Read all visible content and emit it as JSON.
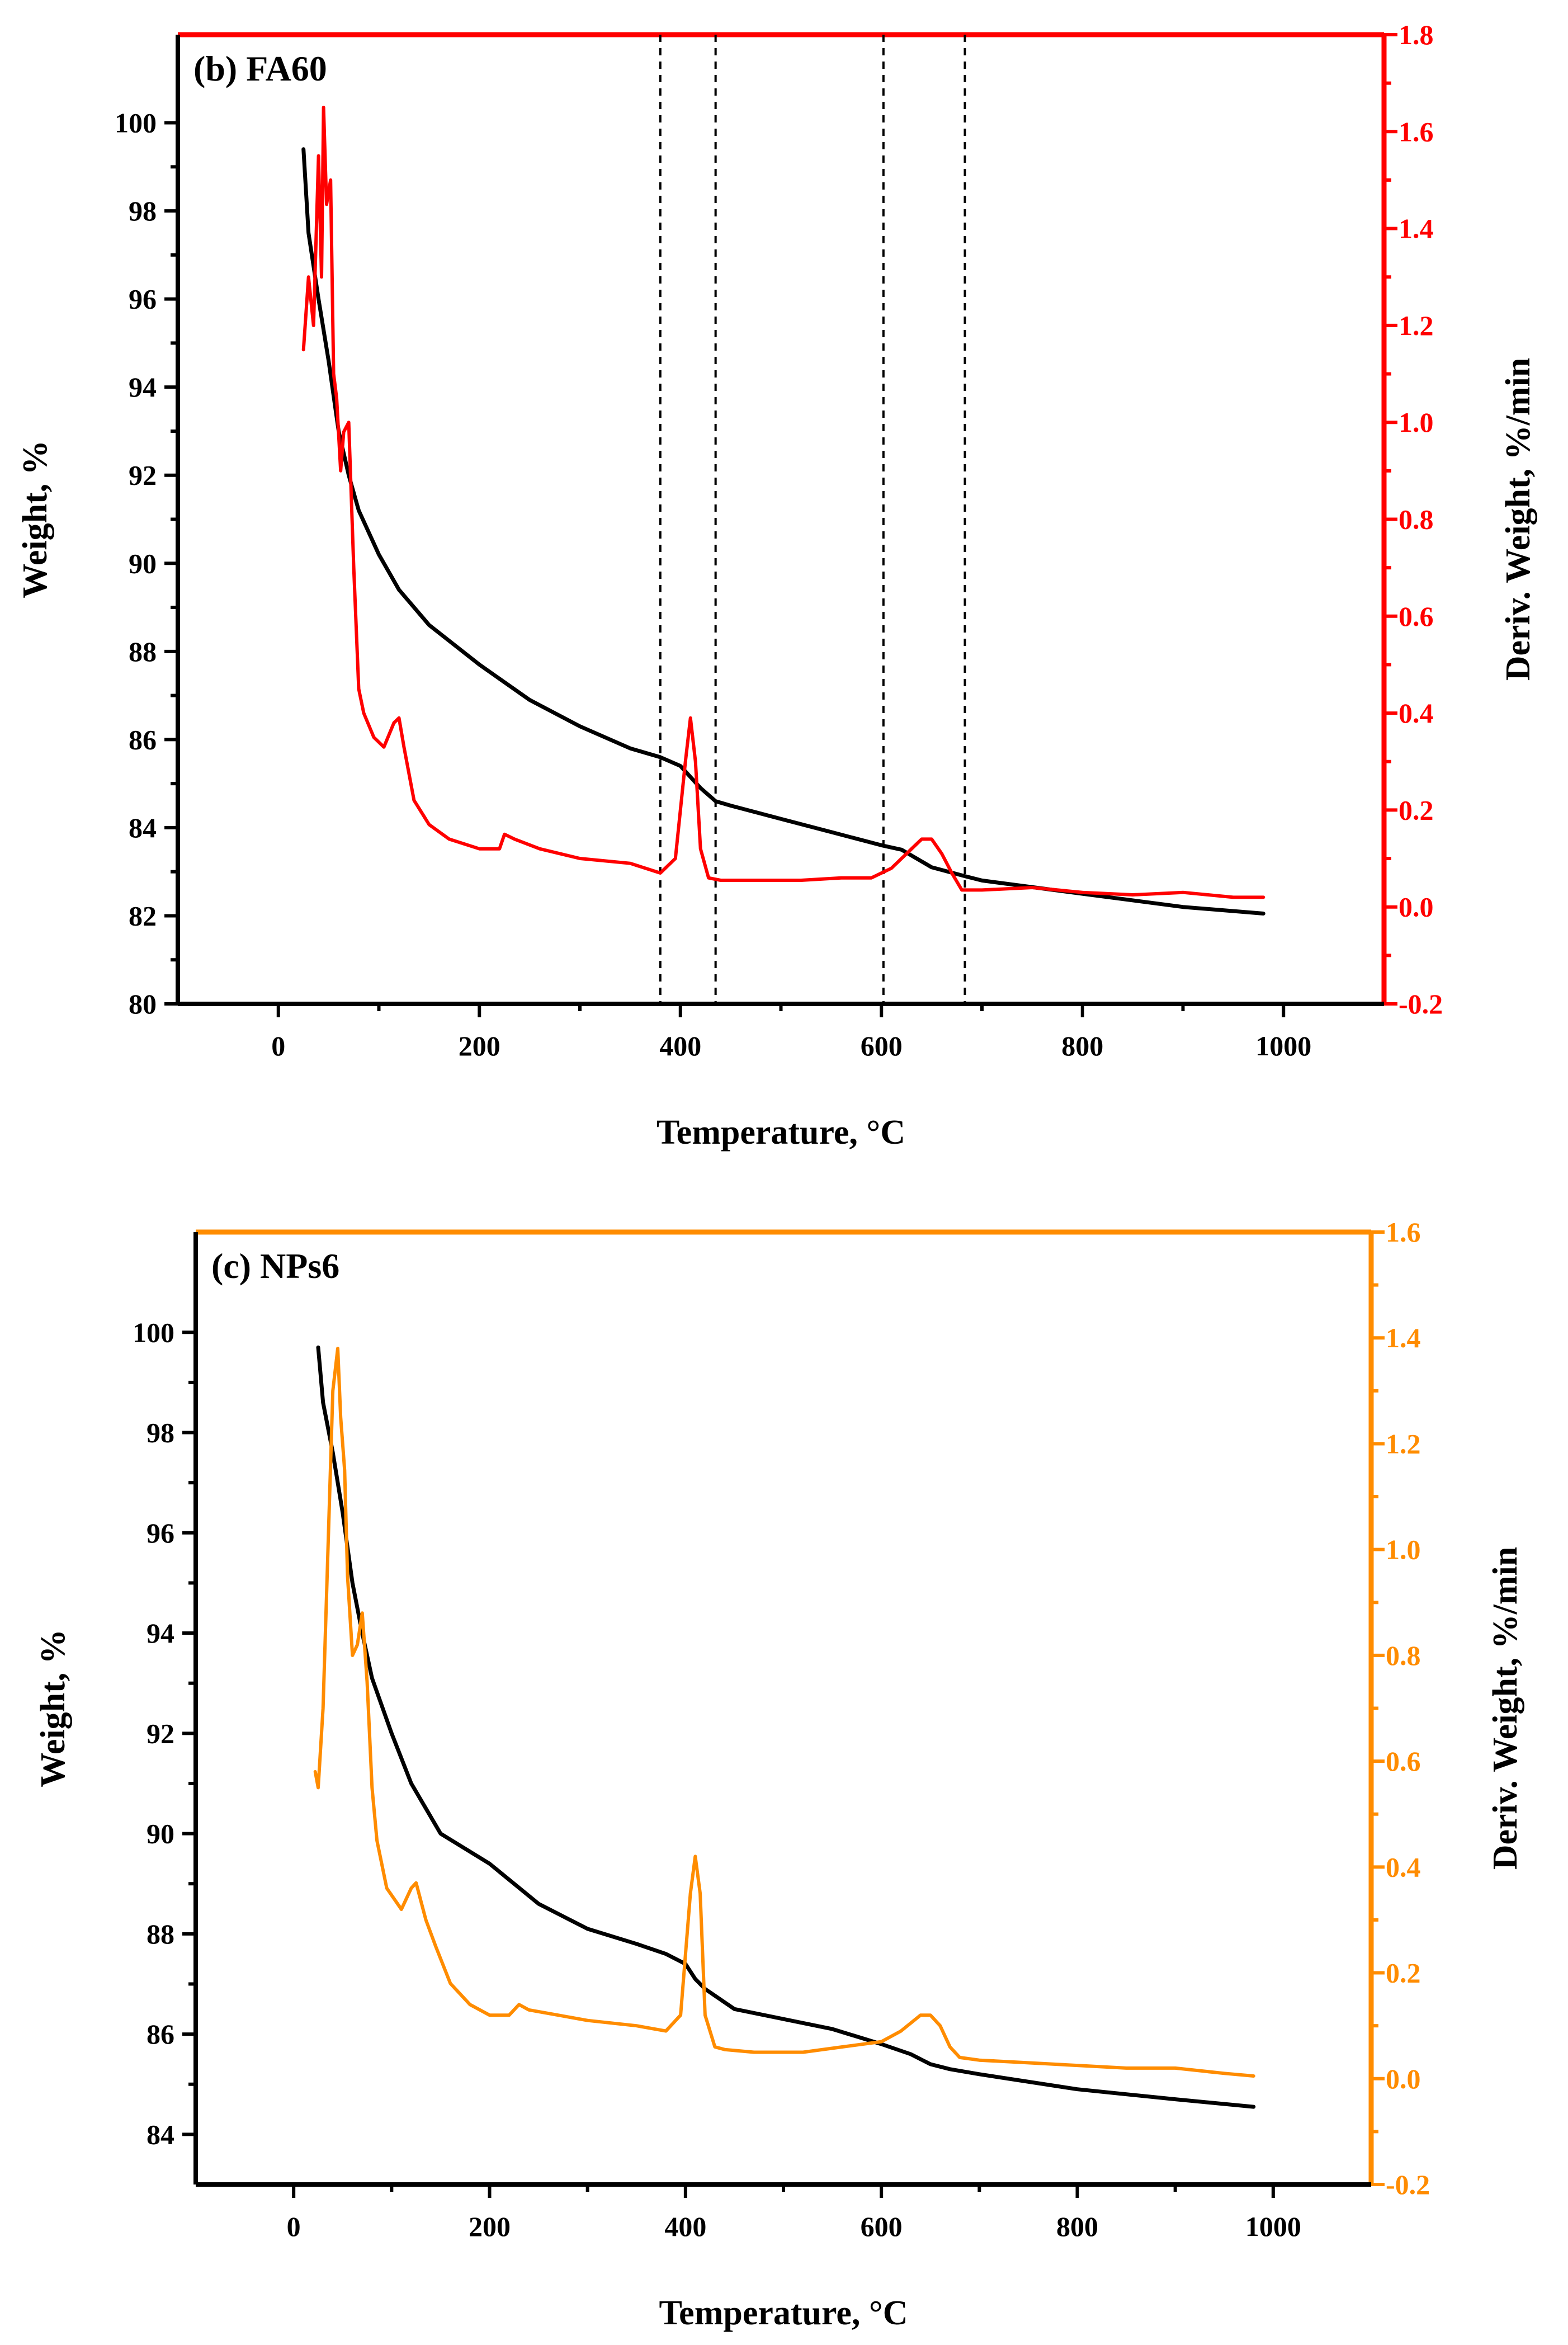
{
  "figure": "TGA / DTG thermograms",
  "chart_data": [
    {
      "type": "line",
      "panel_label": "(b) FA60",
      "xlabel": "Temperature, °C",
      "ylabel_left": "Weight, %",
      "ylabel_right": "Deriv. Weight, %/min",
      "xlim": [
        -100,
        1100
      ],
      "ylim_left": [
        80,
        102
      ],
      "ylim_right": [
        -0.2,
        1.8
      ],
      "xticks": [
        0,
        200,
        400,
        600,
        800,
        1000
      ],
      "yticks_left": [
        80,
        82,
        84,
        86,
        88,
        90,
        92,
        94,
        96,
        98,
        100
      ],
      "yticks_right": [
        -0.2,
        0.0,
        0.2,
        0.4,
        0.6,
        0.8,
        1.0,
        1.2,
        1.4,
        1.6,
        1.8
      ],
      "xtick_labels": [
        "0",
        "200",
        "400",
        "600",
        "800",
        "1000"
      ],
      "ytick_labels_left": [
        "80",
        "82",
        "84",
        "86",
        "88",
        "90",
        "92",
        "94",
        "96",
        "98",
        "100"
      ],
      "ytick_labels_right": [
        "-0.2",
        "0.0",
        "0.2",
        "0.4",
        "0.6",
        "0.8",
        "1.0",
        "1.2",
        "1.4",
        "1.6",
        "1.8"
      ],
      "accent_color": "#ff0000",
      "vlines": [
        380,
        435,
        602,
        683
      ],
      "series": [
        {
          "name": "Weight",
          "axis": "left",
          "color": "#000000",
          "x": [
            25,
            30,
            40,
            50,
            60,
            70,
            80,
            100,
            120,
            150,
            200,
            250,
            300,
            350,
            380,
            400,
            420,
            435,
            450,
            500,
            550,
            600,
            620,
            650,
            683,
            700,
            800,
            900,
            980
          ],
          "y": [
            99.4,
            97.5,
            96.0,
            94.6,
            93.0,
            92.0,
            91.2,
            90.2,
            89.4,
            88.6,
            87.7,
            86.9,
            86.3,
            85.8,
            85.6,
            85.4,
            84.9,
            84.6,
            84.5,
            84.2,
            83.9,
            83.6,
            83.5,
            83.1,
            82.9,
            82.8,
            82.5,
            82.2,
            82.05
          ]
        },
        {
          "name": "Deriv. Weight",
          "axis": "right",
          "color": "#ff0000",
          "x": [
            25,
            30,
            35,
            40,
            43,
            45,
            48,
            52,
            55,
            58,
            62,
            65,
            70,
            75,
            80,
            85,
            95,
            105,
            115,
            120,
            125,
            135,
            150,
            170,
            200,
            220,
            225,
            235,
            260,
            300,
            350,
            380,
            395,
            405,
            410,
            415,
            420,
            428,
            440,
            480,
            520,
            560,
            590,
            610,
            630,
            640,
            650,
            660,
            670,
            680,
            700,
            750,
            800,
            850,
            900,
            950,
            980
          ],
          "y": [
            1.15,
            1.3,
            1.2,
            1.55,
            1.3,
            1.65,
            1.45,
            1.5,
            1.1,
            1.05,
            0.9,
            0.98,
            1.0,
            0.7,
            0.45,
            0.4,
            0.35,
            0.33,
            0.38,
            0.39,
            0.33,
            0.22,
            0.17,
            0.14,
            0.12,
            0.12,
            0.15,
            0.14,
            0.12,
            0.1,
            0.09,
            0.07,
            0.1,
            0.3,
            0.39,
            0.3,
            0.12,
            0.06,
            0.055,
            0.055,
            0.055,
            0.06,
            0.06,
            0.08,
            0.12,
            0.14,
            0.14,
            0.11,
            0.07,
            0.035,
            0.035,
            0.04,
            0.03,
            0.025,
            0.03,
            0.02,
            0.02
          ]
        }
      ]
    },
    {
      "type": "line",
      "panel_label": "(c) NPs6",
      "xlabel": "Temperature, °C",
      "ylabel_left": "Weight, %",
      "ylabel_right": "Deriv. Weight, %/min",
      "xlim": [
        -100,
        1100
      ],
      "ylim_left": [
        83,
        102
      ],
      "ylim_right": [
        -0.2,
        1.6
      ],
      "xticks": [
        0,
        200,
        400,
        600,
        800,
        1000
      ],
      "yticks_left": [
        84,
        86,
        88,
        90,
        92,
        94,
        96,
        98,
        100
      ],
      "yticks_right": [
        -0.2,
        0.0,
        0.2,
        0.4,
        0.6,
        0.8,
        1.0,
        1.2,
        1.4,
        1.6
      ],
      "xtick_labels": [
        "0",
        "200",
        "400",
        "600",
        "800",
        "1000"
      ],
      "ytick_labels_left": [
        "84",
        "86",
        "88",
        "90",
        "92",
        "94",
        "96",
        "98",
        "100"
      ],
      "ytick_labels_right": [
        "-0.2",
        "0.0",
        "0.2",
        "0.4",
        "0.6",
        "0.8",
        "1.0",
        "1.2",
        "1.4",
        "1.6"
      ],
      "accent_color": "#ff8c00",
      "vlines": [],
      "series": [
        {
          "name": "Weight",
          "axis": "left",
          "color": "#000000",
          "x": [
            25,
            30,
            40,
            50,
            60,
            70,
            80,
            100,
            120,
            150,
            200,
            250,
            300,
            350,
            380,
            400,
            410,
            420,
            450,
            500,
            550,
            600,
            630,
            650,
            670,
            700,
            800,
            900,
            980
          ],
          "y": [
            99.7,
            98.6,
            97.6,
            96.4,
            95.0,
            94.0,
            93.1,
            92.0,
            91.0,
            90.0,
            89.4,
            88.6,
            88.1,
            87.8,
            87.6,
            87.4,
            87.1,
            86.9,
            86.5,
            86.3,
            86.1,
            85.8,
            85.6,
            85.4,
            85.3,
            85.2,
            84.9,
            84.7,
            84.55
          ]
        },
        {
          "name": "Deriv. Weight",
          "axis": "right",
          "color": "#ff8c00",
          "x": [
            22,
            25,
            30,
            35,
            40,
            45,
            48,
            52,
            55,
            60,
            65,
            70,
            75,
            80,
            85,
            95,
            110,
            120,
            125,
            135,
            145,
            160,
            180,
            200,
            220,
            230,
            240,
            270,
            300,
            350,
            380,
            395,
            405,
            410,
            415,
            420,
            430,
            440,
            470,
            520,
            560,
            600,
            620,
            640,
            650,
            660,
            670,
            680,
            700,
            750,
            800,
            850,
            900,
            950,
            980
          ],
          "y": [
            0.58,
            0.55,
            0.7,
            1.0,
            1.3,
            1.38,
            1.25,
            1.15,
            0.95,
            0.8,
            0.82,
            0.88,
            0.75,
            0.55,
            0.45,
            0.36,
            0.32,
            0.36,
            0.37,
            0.3,
            0.25,
            0.18,
            0.14,
            0.12,
            0.12,
            0.14,
            0.13,
            0.12,
            0.11,
            0.1,
            0.09,
            0.12,
            0.35,
            0.42,
            0.35,
            0.12,
            0.06,
            0.055,
            0.05,
            0.05,
            0.06,
            0.07,
            0.09,
            0.12,
            0.12,
            0.1,
            0.06,
            0.04,
            0.035,
            0.03,
            0.025,
            0.02,
            0.02,
            0.01,
            0.005
          ]
        }
      ]
    }
  ]
}
